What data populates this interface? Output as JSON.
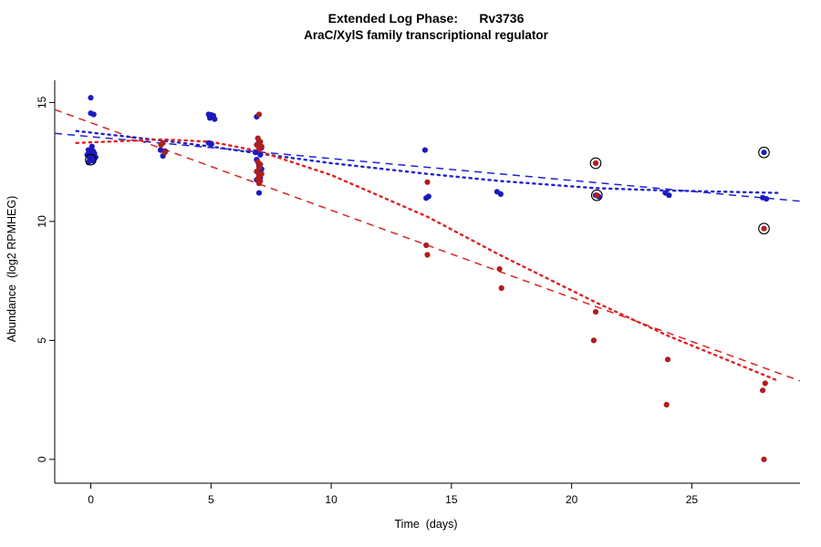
{
  "chart_data": {
    "type": "scatter",
    "title": "Extended Log Phase:      Rv3736",
    "subtitle": "AraC/XylS family transcriptional regulator",
    "xlabel": "Time  (days)",
    "ylabel": "Abundance  (log2 RPMHEG)",
    "xlim": [
      -1.5,
      29.5
    ],
    "ylim": [
      -1,
      17.2
    ],
    "xticks": [
      0,
      5,
      10,
      15,
      20,
      25
    ],
    "yticks": [
      0,
      5,
      10,
      15
    ],
    "grid": false,
    "colors": {
      "blue_points": "#1a1abe",
      "blue_line": "#2222cc",
      "red_points": "#b01e1e",
      "red_line": "#dd2222",
      "circle_marker": "#000000",
      "axis": "#000000",
      "background": "#ffffff"
    },
    "series": [
      {
        "name": "blue-condition",
        "color": "#1a1abe",
        "points": [
          [
            0.0,
            15.2
          ],
          [
            0.0,
            14.55
          ],
          [
            0.12,
            14.5
          ],
          [
            -0.1,
            13.0
          ],
          [
            0.05,
            13.15
          ],
          [
            0.1,
            12.95
          ],
          [
            0.0,
            12.9
          ],
          [
            0.15,
            12.85
          ],
          [
            -0.15,
            12.8
          ],
          [
            0.05,
            12.75
          ],
          [
            0.2,
            12.7
          ],
          [
            -0.05,
            12.65
          ],
          [
            0.0,
            12.6
          ],
          [
            0.1,
            12.55
          ],
          [
            -0.1,
            12.48
          ],
          [
            2.9,
            13.0
          ],
          [
            3.1,
            12.95
          ],
          [
            3.0,
            12.75
          ],
          [
            4.9,
            14.5
          ],
          [
            5.0,
            14.48
          ],
          [
            5.1,
            14.45
          ],
          [
            5.05,
            14.4
          ],
          [
            4.95,
            14.35
          ],
          [
            5.15,
            14.3
          ],
          [
            4.9,
            13.3
          ],
          [
            5.02,
            13.25
          ],
          [
            6.9,
            14.4
          ],
          [
            7.0,
            13.35
          ],
          [
            6.95,
            13.2
          ],
          [
            7.1,
            13.1
          ],
          [
            6.85,
            12.9
          ],
          [
            7.05,
            12.8
          ],
          [
            6.9,
            12.6
          ],
          [
            7.0,
            12.35
          ],
          [
            7.1,
            12.2
          ],
          [
            6.95,
            12.1
          ],
          [
            7.0,
            11.95
          ],
          [
            7.05,
            11.85
          ],
          [
            6.9,
            11.75
          ],
          [
            7.0,
            11.2
          ],
          [
            13.9,
            13.0
          ],
          [
            14.05,
            11.05
          ],
          [
            13.95,
            10.98
          ],
          [
            16.9,
            11.25
          ],
          [
            17.05,
            11.15
          ],
          [
            21.0,
            11.1
          ],
          [
            21.12,
            11.05
          ],
          [
            23.9,
            11.2
          ],
          [
            24.05,
            11.1
          ],
          [
            28.0,
            12.9
          ],
          [
            27.95,
            11.0
          ],
          [
            28.1,
            10.95
          ]
        ]
      },
      {
        "name": "red-condition",
        "color": "#b01e1e",
        "points": [
          [
            3.0,
            13.3
          ],
          [
            2.92,
            13.22
          ],
          [
            3.08,
            12.9
          ],
          [
            7.0,
            14.5
          ],
          [
            6.95,
            13.5
          ],
          [
            7.05,
            13.35
          ],
          [
            7.0,
            13.28
          ],
          [
            6.9,
            13.22
          ],
          [
            7.1,
            13.15
          ],
          [
            7.0,
            13.05
          ],
          [
            6.95,
            12.5
          ],
          [
            7.05,
            12.4
          ],
          [
            7.0,
            12.25
          ],
          [
            6.9,
            12.1
          ],
          [
            7.1,
            12.0
          ],
          [
            7.0,
            11.9
          ],
          [
            6.95,
            11.8
          ],
          [
            7.05,
            11.7
          ],
          [
            7.0,
            11.6
          ],
          [
            14.0,
            11.65
          ],
          [
            13.95,
            9.0
          ],
          [
            14.0,
            8.6
          ],
          [
            17.0,
            8.0
          ],
          [
            17.08,
            7.2
          ],
          [
            21.0,
            12.45
          ],
          [
            21.05,
            11.1
          ],
          [
            21.0,
            6.2
          ],
          [
            20.92,
            5.0
          ],
          [
            24.0,
            4.2
          ],
          [
            23.95,
            2.3
          ],
          [
            28.0,
            9.7
          ],
          [
            28.05,
            3.2
          ],
          [
            27.95,
            2.9
          ],
          [
            28.0,
            0.0
          ]
        ]
      }
    ],
    "circled_points": [
      [
        0.0,
        12.6
      ],
      [
        21.0,
        12.45
      ],
      [
        21.05,
        11.1
      ],
      [
        28.0,
        12.9
      ],
      [
        28.0,
        9.7
      ]
    ],
    "trend_lines": [
      {
        "name": "red-dashed-trend",
        "color": "#dd2222",
        "style": "dashed",
        "points": [
          [
            -1.5,
            14.7
          ],
          [
            29.5,
            3.3
          ]
        ]
      },
      {
        "name": "blue-dashed-trend",
        "color": "#2222cc",
        "style": "dashed",
        "points": [
          [
            -1.5,
            13.7
          ],
          [
            29.5,
            10.85
          ]
        ]
      },
      {
        "name": "blue-dotted-trend",
        "color": "#2222cc",
        "style": "dotted",
        "points": [
          [
            -0.6,
            13.8
          ],
          [
            3,
            13.4
          ],
          [
            5,
            13.15
          ],
          [
            7,
            12.85
          ],
          [
            10,
            12.45
          ],
          [
            14,
            12.0
          ],
          [
            17,
            11.7
          ],
          [
            21,
            11.4
          ],
          [
            24,
            11.3
          ],
          [
            28.6,
            11.2
          ]
        ]
      },
      {
        "name": "red-dotted-trend",
        "color": "#dd2222",
        "style": "dotted",
        "points": [
          [
            -0.6,
            13.3
          ],
          [
            3,
            13.45
          ],
          [
            5,
            13.35
          ],
          [
            7,
            12.95
          ],
          [
            10,
            11.95
          ],
          [
            14,
            10.2
          ],
          [
            17,
            8.6
          ],
          [
            21,
            6.6
          ],
          [
            24,
            5.2
          ],
          [
            28.6,
            3.3
          ]
        ]
      }
    ]
  }
}
